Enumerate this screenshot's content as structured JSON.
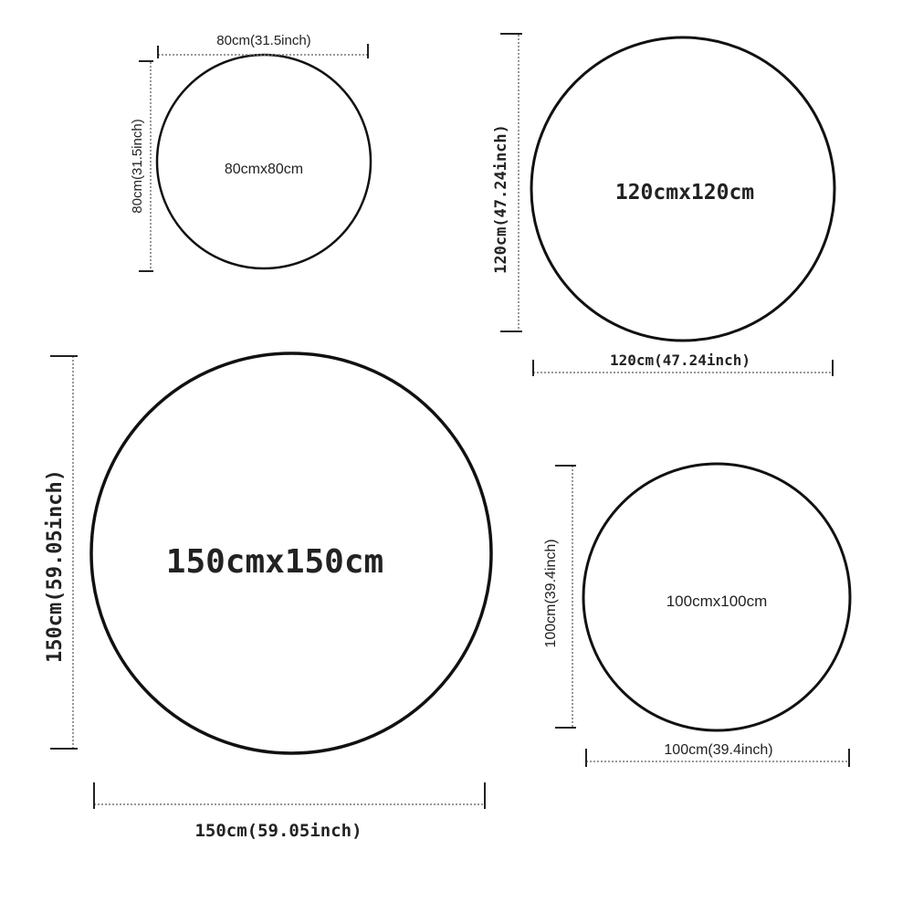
{
  "circles": [
    {
      "label": "80cmx80cm",
      "width_label": "80cm(31.5inch)",
      "height_label": "80cm(31.5inch)"
    },
    {
      "label": "120cmx120cm",
      "width_label": "120cm(47.24inch)",
      "height_label": "120cm(47.24inch)"
    },
    {
      "label": "150cmx150cm",
      "width_label": "150cm(59.05inch)",
      "height_label": "150cm(59.05inch)"
    },
    {
      "label": "100cmx100cm",
      "width_label": "100cm(39.4inch)",
      "height_label": "100cm(39.4inch)"
    }
  ]
}
